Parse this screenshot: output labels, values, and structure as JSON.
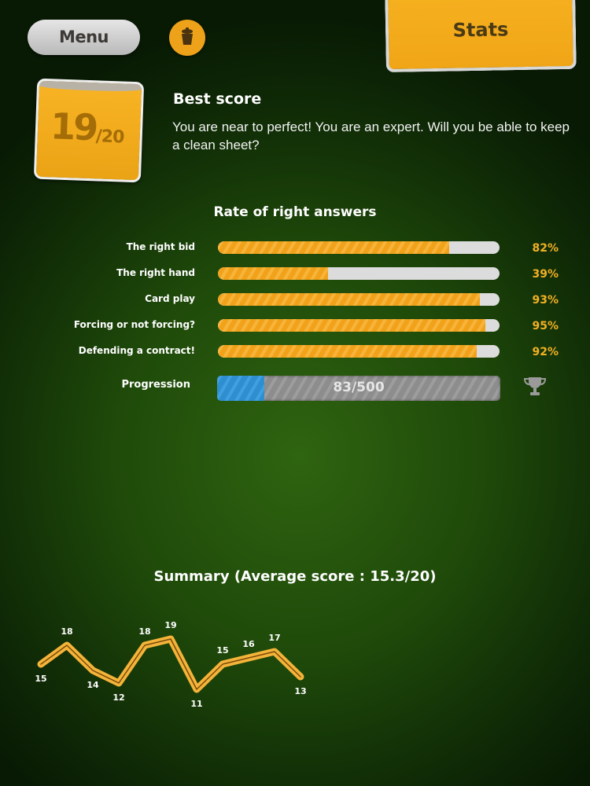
{
  "header": {
    "menu_label": "Menu",
    "trash_icon": "trash-icon",
    "stats_tab_label": "Stats"
  },
  "best_score": {
    "score": "19",
    "out_of": "/20",
    "title": "Best score",
    "description": "You are near to perfect! You are an expert. Will you be able to keep a clean sheet?"
  },
  "rates": {
    "title": "Rate of right answers",
    "items": [
      {
        "label": "The right bid",
        "value": 82,
        "display": "82%"
      },
      {
        "label": "The right hand",
        "value": 39,
        "display": "39%"
      },
      {
        "label": "Card play",
        "value": 93,
        "display": "93%"
      },
      {
        "label": "Forcing or not forcing?",
        "value": 95,
        "display": "95%"
      },
      {
        "label": "Defending a contract!",
        "value": 92,
        "display": "92%"
      }
    ],
    "progression": {
      "label": "Progression",
      "current": 83,
      "total": 500,
      "display": "83/500",
      "icon": "trophy-icon"
    }
  },
  "colors": {
    "accent": "#f2a21a",
    "progress": "#2f8ed0",
    "background": "#1f4a0a"
  },
  "chart_data": {
    "type": "line",
    "title": "Summary (Average score : 15.3/20)",
    "values": [
      15,
      18,
      14,
      12,
      18,
      19,
      11,
      15,
      16,
      17,
      13
    ],
    "labels": [
      "15",
      "18",
      "14",
      "12",
      "18",
      "19",
      "11",
      "15",
      "16",
      "17",
      "13"
    ],
    "grid": false
  }
}
